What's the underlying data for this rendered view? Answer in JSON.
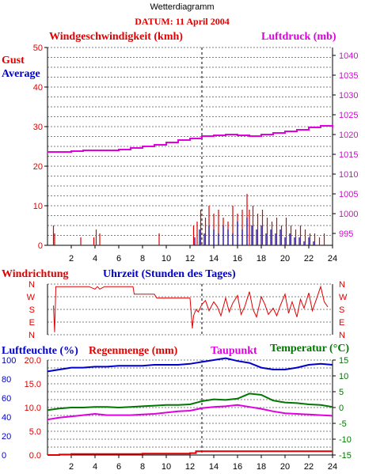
{
  "title": "Wetterdiagramm",
  "date_label": "DATUM: 11 April 2004",
  "colors": {
    "red": "#e00000",
    "blue": "#0000cc",
    "magenta": "#e000e0",
    "green": "#007700",
    "black": "#000000"
  },
  "chart_data": [
    {
      "type": "line",
      "panel": "wind-and-pressure",
      "title_left": "Windgeschwindigkeit (kmh)",
      "title_right": "Luftdruck (mb)",
      "legend": [
        {
          "label": "Gust",
          "color": "#e00000"
        },
        {
          "label": "Average",
          "color": "#0000cc"
        }
      ],
      "x_ticks": [
        "2",
        "4",
        "6",
        "8",
        "10",
        "12",
        "14",
        "16",
        "18",
        "20",
        "22",
        "24"
      ],
      "xlim": [
        0,
        24
      ],
      "y_left": {
        "ticks": [
          "0",
          "10",
          "20",
          "30",
          "40",
          "50"
        ],
        "ylim": [
          0,
          50
        ]
      },
      "y_right": {
        "ticks": [
          "995",
          "1000",
          "1005",
          "1010",
          "1015",
          "1020",
          "1025",
          "1030",
          "1035",
          "1040"
        ],
        "ylim": [
          992,
          1042
        ]
      },
      "grid": true,
      "marker_x": 13,
      "series": [
        {
          "name": "Luftdruck",
          "axis": "right",
          "color": "#e000e0",
          "x": [
            0,
            1,
            2,
            3,
            4,
            5,
            6,
            7,
            8,
            9,
            10,
            11,
            12,
            13,
            14,
            15,
            16,
            17,
            18,
            19,
            20,
            21,
            22,
            23,
            24
          ],
          "values": [
            1015.6,
            1015.6,
            1015.8,
            1016.0,
            1016.0,
            1016.0,
            1016.2,
            1016.6,
            1017.0,
            1017.4,
            1018.0,
            1018.6,
            1019.0,
            1019.6,
            1019.8,
            1020.0,
            1019.8,
            1019.6,
            1020.0,
            1020.4,
            1020.8,
            1021.2,
            1021.8,
            1022.2,
            1021.8
          ]
        },
        {
          "name": "Gust",
          "axis": "left",
          "color": "#e00000",
          "x": [
            0.5,
            0.6,
            2.8,
            3.9,
            4.1,
            4.4,
            9.4,
            12.3,
            12.6,
            12.9,
            13.3,
            13.6,
            14.0,
            14.4,
            14.8,
            15.2,
            15.6,
            16.0,
            16.4,
            16.8,
            17.0,
            17.3,
            17.7,
            18.1,
            18.5,
            18.9,
            19.3,
            19.7,
            20.1,
            20.5,
            20.9,
            21.3,
            21.7,
            22.1,
            22.5,
            22.9,
            23.3
          ],
          "values": [
            5,
            3,
            2,
            2,
            4,
            3,
            3,
            5,
            6,
            9,
            7,
            10,
            8,
            9,
            7,
            6,
            10,
            8,
            9,
            13,
            9,
            10,
            8,
            9,
            7,
            6,
            7,
            5,
            7,
            5,
            4,
            5,
            4,
            3,
            3,
            2,
            3
          ]
        },
        {
          "name": "Average",
          "axis": "left",
          "color": "#0000cc",
          "x": [
            12.4,
            12.8,
            13.2,
            13.6,
            14.0,
            14.4,
            14.8,
            15.2,
            15.6,
            16.0,
            16.4,
            16.8,
            17.2,
            17.6,
            18.0,
            18.4,
            18.8,
            19.2,
            19.6,
            20.0,
            20.4,
            20.8,
            21.2,
            21.6,
            22.0,
            22.4
          ],
          "values": [
            2,
            4,
            3,
            5,
            4,
            3,
            5,
            4,
            3,
            6,
            4,
            7,
            5,
            4,
            5,
            3,
            4,
            3,
            4,
            2,
            3,
            2,
            2,
            1,
            2,
            1
          ]
        }
      ]
    },
    {
      "type": "line",
      "panel": "wind-direction",
      "title_left": "Windrichtung",
      "title_center": "Uhrzeit (Stunden des Tages)",
      "y_ticks": [
        "N",
        "W",
        "S",
        "E",
        "N"
      ],
      "xlim": [
        0,
        24
      ],
      "grid": true,
      "marker_x": 13,
      "series": [
        {
          "name": "Windrichtung",
          "color": "#e00000",
          "x": [
            0.5,
            0.6,
            0.7,
            1.0,
            2.0,
            3.0,
            3.5,
            4.0,
            4.2,
            4.4,
            4.8,
            5.5,
            6.5,
            7.2,
            7.3,
            8.0,
            9.0,
            9.2,
            9.5,
            10.0,
            11.0,
            12.0,
            12.2,
            12.3,
            12.5,
            12.7,
            13.0,
            13.3,
            13.6,
            14.0,
            14.3,
            14.6,
            15.0,
            15.3,
            15.6,
            16.0,
            16.3,
            16.6,
            17.0,
            17.3,
            17.6,
            18.0,
            18.3,
            18.6,
            19.0,
            19.3,
            19.6,
            20.0,
            20.3,
            20.6,
            21.0,
            21.3,
            21.6,
            22.0,
            22.3,
            22.6,
            23.0,
            23.3,
            23.6
          ],
          "values": [
            2.3,
            0.2,
            3.8,
            3.8,
            3.8,
            3.8,
            3.8,
            3.6,
            3.8,
            3.6,
            3.8,
            3.8,
            3.8,
            3.8,
            3.2,
            3.2,
            3.2,
            2.9,
            2.9,
            2.9,
            2.9,
            2.9,
            0.5,
            1.5,
            2.0,
            1.8,
            2.4,
            2.7,
            1.9,
            2.6,
            2.2,
            1.5,
            2.9,
            1.8,
            2.5,
            3.1,
            1.6,
            2.2,
            3.4,
            2.0,
            1.4,
            3.0,
            2.4,
            1.6,
            2.1,
            1.5,
            2.3,
            3.2,
            1.7,
            2.6,
            1.4,
            2.8,
            2.1,
            3.3,
            1.9,
            2.7,
            3.8,
            2.6,
            2.2
          ]
        }
      ]
    },
    {
      "type": "line",
      "panel": "humidity-rain-temperature",
      "labels": [
        {
          "text": "Luftfeuchte (%)",
          "color": "#0000cc"
        },
        {
          "text": "Regenmenge (mm)",
          "color": "#e00000"
        },
        {
          "text": "Taupunkt",
          "color": "#e000e0"
        },
        {
          "text": "Temperatur (°C)",
          "color": "#007700"
        }
      ],
      "x_ticks": [
        "2",
        "4",
        "6",
        "8",
        "10",
        "12",
        "14",
        "16",
        "18",
        "20",
        "22",
        "24"
      ],
      "xlim": [
        0,
        24
      ],
      "y_left_humidity": {
        "ticks": [
          "0",
          "20",
          "40",
          "60",
          "80",
          "100"
        ],
        "ylim": [
          0,
          100
        ]
      },
      "y_left_rain": {
        "ticks": [
          "0.0",
          "5.0",
          "10.0",
          "15.0",
          "20.0"
        ],
        "ylim": [
          0,
          20
        ]
      },
      "y_right_temp": {
        "ticks": [
          "-15",
          "-10",
          "-5",
          "0",
          "5",
          "10",
          "15"
        ],
        "ylim": [
          -15,
          15
        ]
      },
      "grid": true,
      "marker_x": 13,
      "series": [
        {
          "name": "Luftfeuchte",
          "axis": "humidity",
          "color": "#0000cc",
          "x": [
            0,
            1,
            2,
            3,
            4,
            5,
            6,
            7,
            8,
            9,
            10,
            11,
            12,
            13,
            14,
            15,
            16,
            17,
            18,
            19,
            20,
            21,
            22,
            23,
            24
          ],
          "values": [
            88,
            90,
            92,
            92,
            93,
            93,
            94,
            94,
            94,
            95,
            95,
            95,
            96,
            98,
            100,
            102,
            99,
            97,
            92,
            90,
            90,
            92,
            95,
            96,
            95
          ]
        },
        {
          "name": "Temperatur",
          "axis": "temp",
          "color": "#007700",
          "x": [
            0,
            1,
            2,
            3,
            4,
            5,
            6,
            7,
            8,
            9,
            10,
            11,
            12,
            13,
            14,
            15,
            16,
            17,
            18,
            19,
            20,
            21,
            22,
            23,
            24
          ],
          "values": [
            -0.8,
            -0.3,
            0.0,
            0.0,
            0.2,
            0.2,
            0.0,
            0.2,
            0.4,
            0.6,
            0.8,
            0.8,
            1.0,
            2.0,
            2.6,
            2.4,
            2.8,
            4.4,
            4.0,
            2.2,
            1.6,
            1.4,
            1.0,
            0.8,
            0.2
          ]
        },
        {
          "name": "Taupunkt",
          "axis": "temp",
          "color": "#e000e0",
          "x": [
            0,
            1,
            2,
            3,
            4,
            5,
            6,
            7,
            8,
            9,
            10,
            11,
            12,
            13,
            14,
            15,
            16,
            17,
            18,
            19,
            20,
            21,
            22,
            23,
            24
          ],
          "values": [
            -3.8,
            -3.2,
            -2.8,
            -2.4,
            -2.0,
            -2.4,
            -2.4,
            -2.4,
            -2.2,
            -2.0,
            -1.6,
            -1.2,
            -1.0,
            -0.2,
            0.2,
            0.4,
            0.8,
            0.2,
            -0.4,
            -1.2,
            -1.8,
            -2.0,
            -2.2,
            -2.4,
            -2.6
          ]
        },
        {
          "name": "Regenmenge",
          "axis": "rain",
          "color": "#e00000",
          "x": [
            0,
            0.5,
            1,
            2,
            4,
            6,
            8,
            10,
            12,
            12.5,
            14,
            16,
            18,
            20,
            22,
            24
          ],
          "values": [
            0,
            0,
            0.1,
            0.2,
            0.2,
            0.2,
            0.3,
            0.3,
            0.4,
            0.8,
            0.8,
            0.8,
            0.8,
            0.8,
            0.8,
            0.8
          ]
        }
      ]
    }
  ]
}
